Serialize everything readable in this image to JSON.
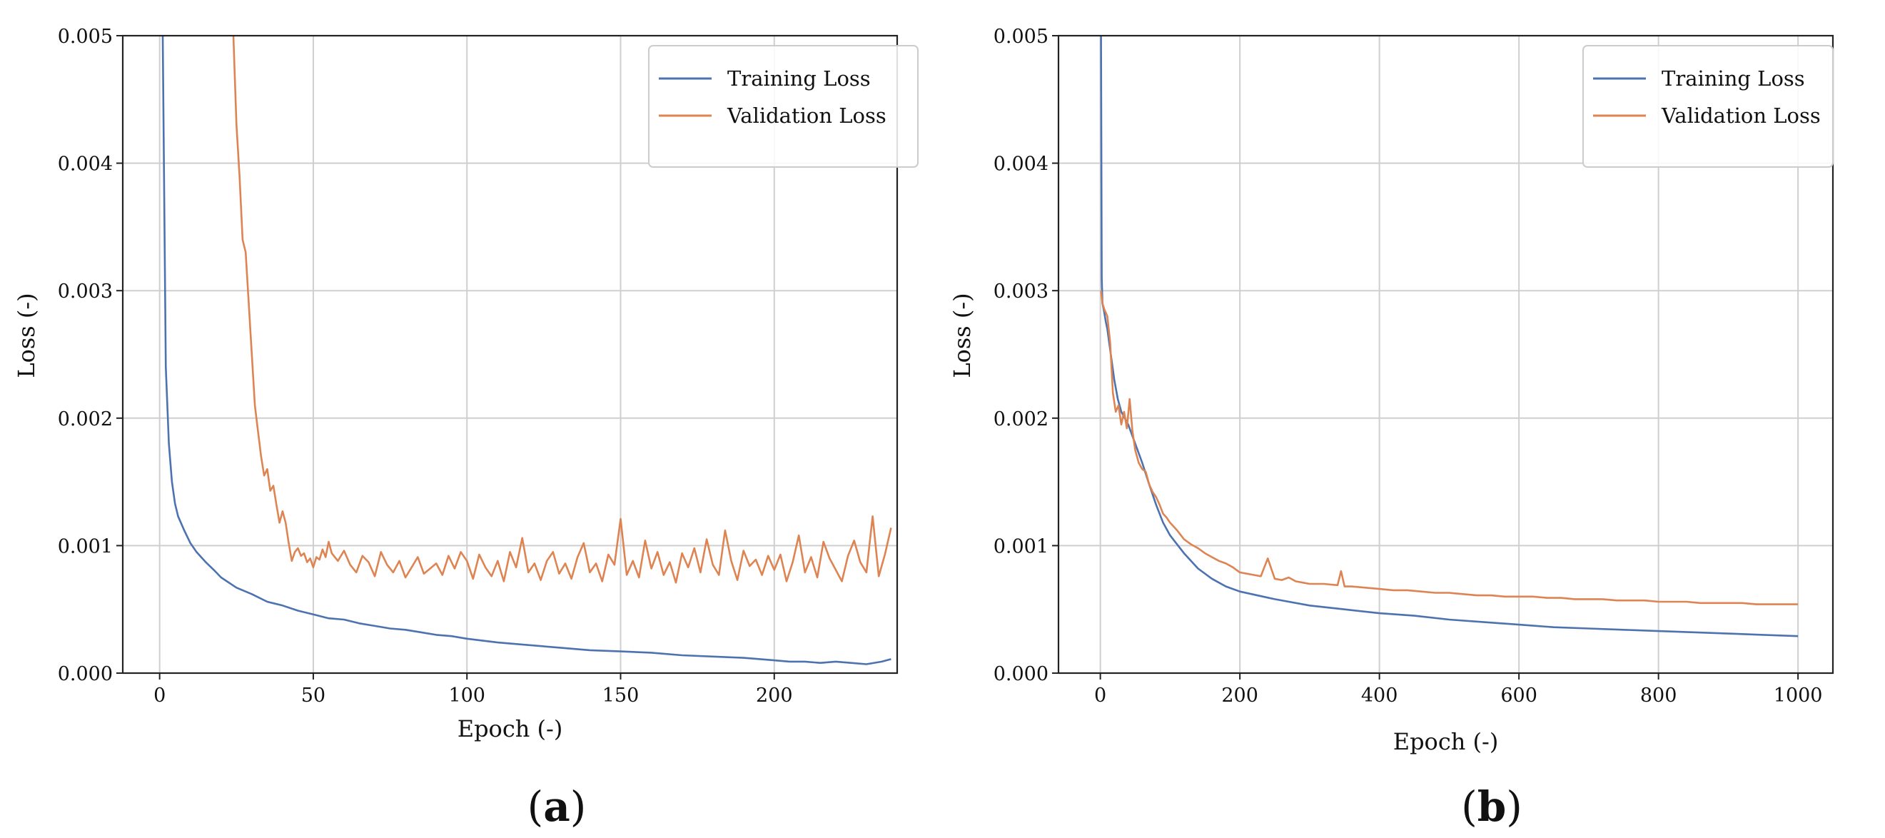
{
  "colors": {
    "training": "#4c72b0",
    "validation": "#dd8452"
  },
  "chart_data": [
    {
      "type": "line",
      "panel": "(a)",
      "panel_letter": "a",
      "xlabel": "Epoch (-)",
      "ylabel": "Loss (-)",
      "xlim": [
        -12,
        240
      ],
      "ylim": [
        0,
        0.005
      ],
      "xticks": [
        0,
        50,
        100,
        150,
        200
      ],
      "yticks": [
        0,
        0.001,
        0.002,
        0.003,
        0.004,
        0.005
      ],
      "ytick_labels": [
        "0.000",
        "0.001",
        "0.002",
        "0.003",
        "0.004",
        "0.005"
      ],
      "grid": true,
      "legend_position": "top-right",
      "series": [
        {
          "name": "Training Loss",
          "x": [
            1,
            2,
            3,
            4,
            5,
            6,
            8,
            10,
            12,
            15,
            18,
            20,
            25,
            30,
            35,
            40,
            45,
            50,
            55,
            60,
            65,
            70,
            75,
            80,
            85,
            90,
            95,
            100,
            110,
            120,
            130,
            140,
            150,
            160,
            170,
            180,
            190,
            200,
            205,
            210,
            215,
            220,
            225,
            230,
            235,
            238
          ],
          "y": [
            0.005,
            0.0024,
            0.0018,
            0.0015,
            0.00133,
            0.00123,
            0.00112,
            0.00102,
            0.00095,
            0.00087,
            0.0008,
            0.00075,
            0.00067,
            0.00062,
            0.00056,
            0.00053,
            0.00049,
            0.00046,
            0.00043,
            0.00042,
            0.00039,
            0.00037,
            0.00035,
            0.00034,
            0.00032,
            0.0003,
            0.00029,
            0.00027,
            0.00024,
            0.00022,
            0.0002,
            0.00018,
            0.00017,
            0.00016,
            0.00014,
            0.00013,
            0.00012,
            0.0001,
            9e-05,
            9e-05,
            8e-05,
            9e-05,
            8e-05,
            7e-05,
            9e-05,
            0.00011
          ]
        },
        {
          "name": "Validation Loss",
          "x": [
            24,
            25,
            26,
            27,
            28,
            29,
            30,
            31,
            32,
            33,
            34,
            35,
            36,
            37,
            38,
            39,
            40,
            41,
            42,
            43,
            44,
            45,
            46,
            47,
            48,
            49,
            50,
            51,
            52,
            53,
            54,
            55,
            56,
            58,
            60,
            62,
            64,
            66,
            68,
            70,
            72,
            74,
            76,
            78,
            80,
            82,
            84,
            86,
            88,
            90,
            92,
            94,
            96,
            98,
            100,
            102,
            104,
            106,
            108,
            110,
            112,
            114,
            116,
            118,
            120,
            122,
            124,
            126,
            128,
            130,
            132,
            134,
            136,
            138,
            140,
            142,
            144,
            146,
            148,
            150,
            152,
            154,
            156,
            158,
            160,
            162,
            164,
            166,
            168,
            170,
            172,
            174,
            176,
            178,
            180,
            182,
            184,
            186,
            188,
            190,
            192,
            194,
            196,
            198,
            200,
            202,
            204,
            206,
            208,
            210,
            212,
            214,
            216,
            218,
            220,
            222,
            224,
            226,
            228,
            230,
            232,
            234,
            236,
            238
          ],
          "y": [
            0.005,
            0.0043,
            0.0039,
            0.0034,
            0.0033,
            0.0029,
            0.0025,
            0.0021,
            0.0019,
            0.0017,
            0.00155,
            0.0016,
            0.00143,
            0.00147,
            0.00132,
            0.00118,
            0.00127,
            0.00118,
            0.00102,
            0.00088,
            0.00095,
            0.00098,
            0.00092,
            0.00094,
            0.00087,
            0.0009,
            0.00083,
            0.00091,
            0.00089,
            0.00097,
            0.00091,
            0.00103,
            0.00094,
            0.00088,
            0.00096,
            0.00085,
            0.00079,
            0.00092,
            0.00087,
            0.00076,
            0.00095,
            0.00085,
            0.00079,
            0.00088,
            0.00075,
            0.00083,
            0.00091,
            0.00078,
            0.00082,
            0.00086,
            0.00077,
            0.00092,
            0.00082,
            0.00095,
            0.00088,
            0.00074,
            0.00093,
            0.00083,
            0.00076,
            0.00088,
            0.00072,
            0.00095,
            0.00083,
            0.00106,
            0.00079,
            0.00086,
            0.00073,
            0.00088,
            0.00095,
            0.00078,
            0.00086,
            0.00074,
            0.00091,
            0.00102,
            0.00079,
            0.00086,
            0.00072,
            0.00093,
            0.00085,
            0.00121,
            0.00077,
            0.00088,
            0.00075,
            0.00104,
            0.00082,
            0.00095,
            0.00077,
            0.00087,
            0.00071,
            0.00094,
            0.00083,
            0.00098,
            0.00079,
            0.00105,
            0.00085,
            0.00077,
            0.00112,
            0.00088,
            0.00073,
            0.00096,
            0.00084,
            0.00089,
            0.00077,
            0.00092,
            0.00081,
            0.00093,
            0.00072,
            0.00087,
            0.00108,
            0.00079,
            0.00091,
            0.00075,
            0.00103,
            0.0009,
            0.00081,
            0.00072,
            0.00092,
            0.00104,
            0.00087,
            0.00079,
            0.00123,
            0.00076,
            0.00093,
            0.00114
          ]
        }
      ]
    },
    {
      "type": "line",
      "panel": "(b)",
      "panel_letter": "b",
      "xlabel": "Epoch (-)",
      "ylabel": "Loss (-)",
      "xlim": [
        -60,
        1050
      ],
      "ylim": [
        0,
        0.005
      ],
      "xticks": [
        0,
        200,
        400,
        600,
        800,
        1000
      ],
      "yticks": [
        0,
        0.001,
        0.002,
        0.003,
        0.004,
        0.005
      ],
      "ytick_labels": [
        "0.000",
        "0.001",
        "0.002",
        "0.003",
        "0.004",
        "0.005"
      ],
      "grid": true,
      "legend_position": "top-right",
      "series": [
        {
          "name": "Training Loss",
          "x": [
            1,
            2,
            3,
            5,
            8,
            10,
            15,
            20,
            25,
            30,
            40,
            50,
            60,
            70,
            80,
            90,
            100,
            120,
            140,
            160,
            180,
            200,
            250,
            300,
            350,
            400,
            450,
            500,
            550,
            600,
            650,
            700,
            750,
            800,
            850,
            900,
            950,
            1000
          ],
          "y": [
            0.005,
            0.0031,
            0.0029,
            0.00285,
            0.00275,
            0.0027,
            0.0025,
            0.0023,
            0.00215,
            0.00205,
            0.00195,
            0.0018,
            0.00165,
            0.00148,
            0.00132,
            0.00118,
            0.00108,
            0.00094,
            0.00082,
            0.00074,
            0.00068,
            0.00064,
            0.00058,
            0.00053,
            0.0005,
            0.00047,
            0.00045,
            0.00042,
            0.0004,
            0.00038,
            0.00036,
            0.00035,
            0.00034,
            0.00033,
            0.00032,
            0.00031,
            0.0003,
            0.00029
          ]
        },
        {
          "name": "Validation Loss",
          "x": [
            1,
            3,
            6,
            10,
            14,
            18,
            22,
            26,
            30,
            34,
            38,
            42,
            46,
            50,
            55,
            60,
            65,
            70,
            75,
            80,
            85,
            90,
            95,
            100,
            110,
            120,
            130,
            140,
            150,
            160,
            170,
            180,
            190,
            200,
            210,
            220,
            230,
            240,
            250,
            260,
            270,
            280,
            290,
            300,
            320,
            340,
            345,
            350,
            360,
            380,
            400,
            420,
            440,
            460,
            480,
            500,
            520,
            540,
            560,
            580,
            600,
            620,
            640,
            660,
            680,
            700,
            720,
            740,
            760,
            780,
            800,
            820,
            840,
            860,
            880,
            900,
            920,
            940,
            960,
            980,
            1000
          ],
          "y": [
            0.003,
            0.0029,
            0.00285,
            0.0028,
            0.0026,
            0.0022,
            0.00205,
            0.0021,
            0.00195,
            0.00205,
            0.00192,
            0.00215,
            0.0019,
            0.00175,
            0.00165,
            0.0016,
            0.00158,
            0.00148,
            0.00142,
            0.00138,
            0.00132,
            0.00125,
            0.00122,
            0.00118,
            0.00112,
            0.00105,
            0.00101,
            0.00098,
            0.00094,
            0.00091,
            0.00088,
            0.00086,
            0.00083,
            0.00079,
            0.00078,
            0.00077,
            0.00076,
            0.0009,
            0.00074,
            0.00073,
            0.00075,
            0.00072,
            0.00071,
            0.0007,
            0.0007,
            0.00069,
            0.0008,
            0.00068,
            0.00068,
            0.00067,
            0.00066,
            0.00065,
            0.00065,
            0.00064,
            0.00063,
            0.00063,
            0.00062,
            0.00061,
            0.00061,
            0.0006,
            0.0006,
            0.0006,
            0.00059,
            0.00059,
            0.00058,
            0.00058,
            0.00058,
            0.00057,
            0.00057,
            0.00057,
            0.00056,
            0.00056,
            0.00056,
            0.00055,
            0.00055,
            0.00055,
            0.00055,
            0.00054,
            0.00054,
            0.00054,
            0.00054
          ]
        }
      ]
    }
  ]
}
